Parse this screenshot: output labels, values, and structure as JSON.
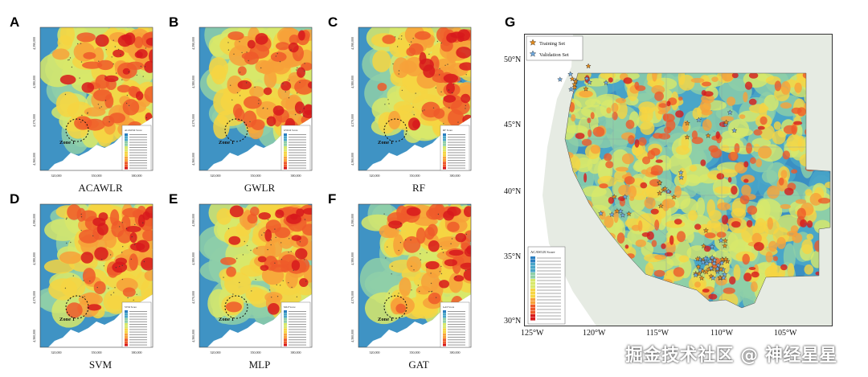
{
  "panels": [
    {
      "letter": "A",
      "caption": "ACAWLR",
      "legend_title": "ACAWLR Score",
      "zone_label": "Zone 1",
      "y_ticks": [
        "4,390,000",
        "4,380,000",
        "4,370,000",
        "4,360,000"
      ],
      "x_ticks": [
        "320,000",
        "350,000",
        "380,000"
      ]
    },
    {
      "letter": "B",
      "caption": "GWLR",
      "legend_title": "GWLR Score",
      "zone_label": "Zone 1",
      "y_ticks": [
        "4,390,000",
        "4,380,000",
        "4,370,000",
        "4,360,000"
      ],
      "x_ticks": [
        "320,000",
        "350,000",
        "380,000"
      ]
    },
    {
      "letter": "C",
      "caption": "RF",
      "legend_title": "RF Score",
      "zone_label": "Zone 1",
      "y_ticks": [
        "4,390,000",
        "4,380,000",
        "4,370,000",
        "4,360,000"
      ],
      "x_ticks": [
        "320,000",
        "350,000",
        "380,000"
      ]
    },
    {
      "letter": "D",
      "caption": "SVM",
      "legend_title": "SVM Score",
      "zone_label": "Zone 1",
      "y_ticks": [
        "4,390,000",
        "4,380,000",
        "4,370,000",
        "4,360,000"
      ],
      "x_ticks": [
        "320,000",
        "350,000",
        "380,000"
      ]
    },
    {
      "letter": "E",
      "caption": "MLP",
      "legend_title": "MLP Score",
      "zone_label": "Zone 1",
      "y_ticks": [
        "4,390,000",
        "4,380,000",
        "4,370,000",
        "4,360,000"
      ],
      "x_ticks": [
        "320,000",
        "350,000",
        "380,000"
      ]
    },
    {
      "letter": "F",
      "caption": "GAT",
      "legend_title": "GAT Score",
      "zone_label": "Zone 1",
      "y_ticks": [
        "4,390,000",
        "4,380,000",
        "4,370,000",
        "4,360,000"
      ],
      "x_ticks": [
        "320,000",
        "350,000",
        "380,000"
      ]
    }
  ],
  "panel_g": {
    "letter": "G",
    "legend": [
      {
        "label": "Training Set",
        "color": "#e08a1e"
      },
      {
        "label": "Validation Set",
        "color": "#6fa8dc"
      }
    ],
    "score_legend_title": "ACAWLR Score",
    "lat_labels": [
      "50°N",
      "45°N",
      "40°N",
      "35°N",
      "30°N"
    ],
    "lon_labels": [
      "125°W",
      "120°W",
      "115°W",
      "110°W",
      "105°W"
    ]
  },
  "colors": {
    "score_ramp": [
      "#2b7fc1",
      "#4aa6c8",
      "#8fcfa8",
      "#d8e86a",
      "#f6d542",
      "#f7a13a",
      "#ee5a2a",
      "#d7191c"
    ],
    "water": "#ffffff",
    "land_outside": "#e3e8e1"
  },
  "watermark": "掘金技术社区 @ 神经星星"
}
